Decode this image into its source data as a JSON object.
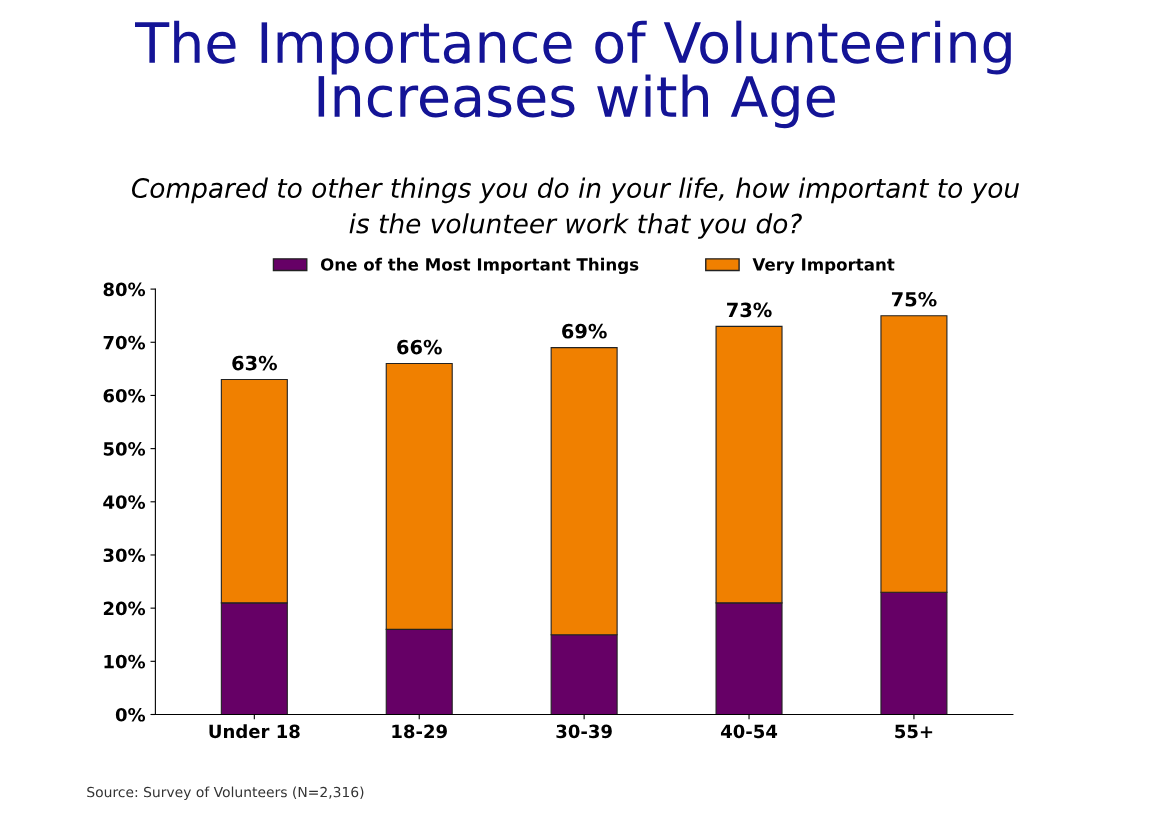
{
  "chart_data": {
    "type": "bar",
    "title": "The Importance of Volunteering\nIncreases with Age",
    "subtitle": "Compared to other things you do in your life, how important to you\nis the volunteer work that you do?",
    "categories": [
      "Under 18",
      "18-29",
      "30-39",
      "40-54",
      "55+"
    ],
    "series": [
      {
        "name": "One of the Most Important Things",
        "color": "#660066",
        "values": [
          21,
          16,
          15,
          21,
          23
        ]
      },
      {
        "name": "Very Important",
        "color": "#f08000",
        "values": [
          42,
          50,
          54,
          52,
          52
        ]
      }
    ],
    "stacked": true,
    "totals": [
      "63%",
      "66%",
      "69%",
      "73%",
      "75%"
    ],
    "ylim": [
      0,
      80
    ],
    "yticks": [
      {
        "value": 0,
        "label": "0%"
      },
      {
        "value": 10,
        "label": "10%"
      },
      {
        "value": 20,
        "label": "20%"
      },
      {
        "value": 30,
        "label": "30%"
      },
      {
        "value": 40,
        "label": "40%"
      },
      {
        "value": 50,
        "label": "50%"
      },
      {
        "value": 60,
        "label": "60%"
      },
      {
        "value": 70,
        "label": "70%"
      },
      {
        "value": 80,
        "label": "80%"
      }
    ],
    "grid": false,
    "legend": "top",
    "annotations": [
      "Source: Survey of Volunteers (N=2,316)"
    ]
  }
}
